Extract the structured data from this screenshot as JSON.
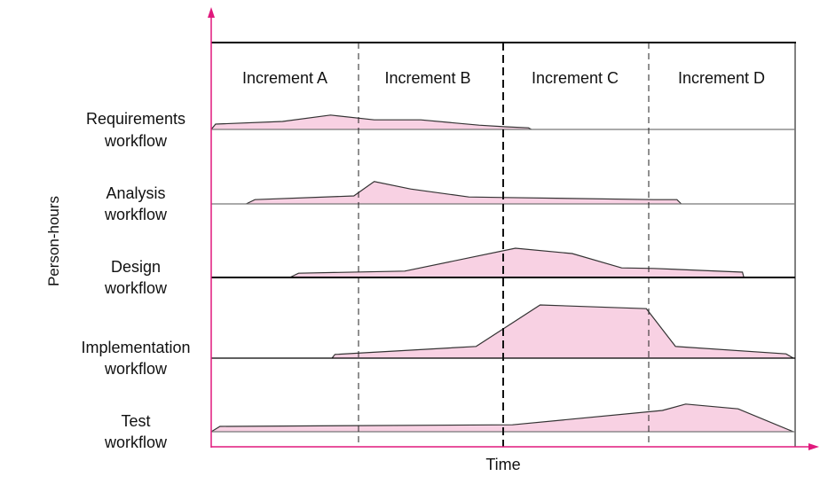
{
  "axes": {
    "y_label": "Person-hours",
    "x_label": "Time"
  },
  "increments": [
    "Increment A",
    "Increment B",
    "Increment C",
    "Increment D"
  ],
  "colors": {
    "fill": "#f8d1e3",
    "axis": "#e0197d",
    "stroke": "#333333"
  },
  "chart_data": {
    "type": "area",
    "x_unit": "increments elapsed (0-4)",
    "y_unit": "relative person-hours",
    "workflows": [
      {
        "label1": "Requirements",
        "label2": "workflow",
        "points": [
          [
            0,
            0
          ],
          [
            0.03,
            1
          ],
          [
            0.49,
            1.5
          ],
          [
            0.82,
            2.7
          ],
          [
            1.12,
            1.8
          ],
          [
            1.44,
            1.8
          ],
          [
            1.84,
            0.8
          ],
          [
            2.02,
            0.5
          ],
          [
            2.18,
            0.3
          ],
          [
            2.2,
            0
          ]
        ]
      },
      {
        "label1": "Analysis",
        "label2": "workflow",
        "points": [
          [
            0.24,
            0
          ],
          [
            0.3,
            0.8
          ],
          [
            0.98,
            1.5
          ],
          [
            1.12,
            4.2
          ],
          [
            1.37,
            2.8
          ],
          [
            1.77,
            1.3
          ],
          [
            2.02,
            1.2
          ],
          [
            3.04,
            0.8
          ],
          [
            3.2,
            0.8
          ],
          [
            3.23,
            0
          ]
        ]
      },
      {
        "label1": "Design",
        "label2": "workflow",
        "points": [
          [
            0.54,
            0
          ],
          [
            0.6,
            0.8
          ],
          [
            1.33,
            1.2
          ],
          [
            2.09,
            5.5
          ],
          [
            2.48,
            4.5
          ],
          [
            2.82,
            1.8
          ],
          [
            3.04,
            1.7
          ],
          [
            3.65,
            1
          ],
          [
            3.66,
            0
          ]
        ]
      },
      {
        "label1": "Implementation",
        "label2": "workflow",
        "points": [
          [
            0.83,
            0
          ],
          [
            0.85,
            0.7
          ],
          [
            1.82,
            2.2
          ],
          [
            2.26,
            10
          ],
          [
            2.99,
            9.3
          ],
          [
            3.19,
            2.2
          ],
          [
            3.95,
            0.8
          ],
          [
            4,
            0
          ]
        ]
      },
      {
        "label1": "Test",
        "label2": "workflow",
        "points": [
          [
            0,
            0
          ],
          [
            0.06,
            1
          ],
          [
            2.07,
            1.3
          ],
          [
            3.1,
            4
          ],
          [
            3.26,
            5.2
          ],
          [
            3.62,
            4.3
          ],
          [
            4,
            0
          ]
        ]
      }
    ]
  }
}
